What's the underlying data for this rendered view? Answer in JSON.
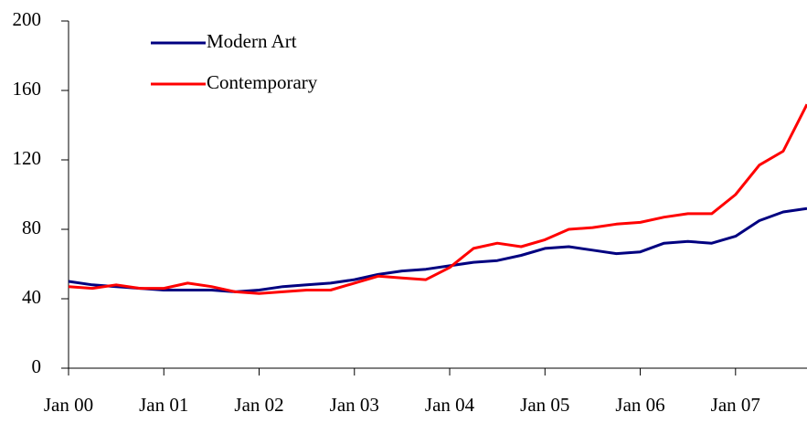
{
  "chart_data": {
    "type": "line",
    "categories": [
      "Jan 00",
      null,
      null,
      null,
      "Jan 01",
      null,
      null,
      null,
      "Jan 02",
      null,
      null,
      null,
      "Jan 03",
      null,
      null,
      null,
      "Jan 04",
      null,
      null,
      null,
      "Jan 05",
      null,
      null,
      null,
      "Jan 06",
      null,
      null,
      null,
      "Jan 07",
      null,
      null,
      null
    ],
    "series": [
      {
        "name": "Modern Art",
        "color": "#000080",
        "values": [
          50,
          48,
          47,
          46,
          45,
          45,
          45,
          44,
          45,
          47,
          48,
          49,
          51,
          54,
          56,
          57,
          59,
          61,
          62,
          65,
          69,
          70,
          68,
          66,
          67,
          72,
          73,
          72,
          76,
          85,
          90,
          92
        ]
      },
      {
        "name": "Contemporary",
        "color": "#ff0000",
        "values": [
          47,
          46,
          48,
          46,
          46,
          49,
          47,
          44,
          43,
          44,
          45,
          45,
          49,
          53,
          52,
          51,
          58,
          69,
          72,
          70,
          74,
          80,
          81,
          83,
          84,
          87,
          89,
          89,
          100,
          117,
          125,
          152
        ]
      }
    ],
    "ylim": [
      0,
      200
    ],
    "yticks": [
      0,
      40,
      80,
      120,
      160,
      200
    ],
    "grid": false,
    "legend": "upper left"
  }
}
